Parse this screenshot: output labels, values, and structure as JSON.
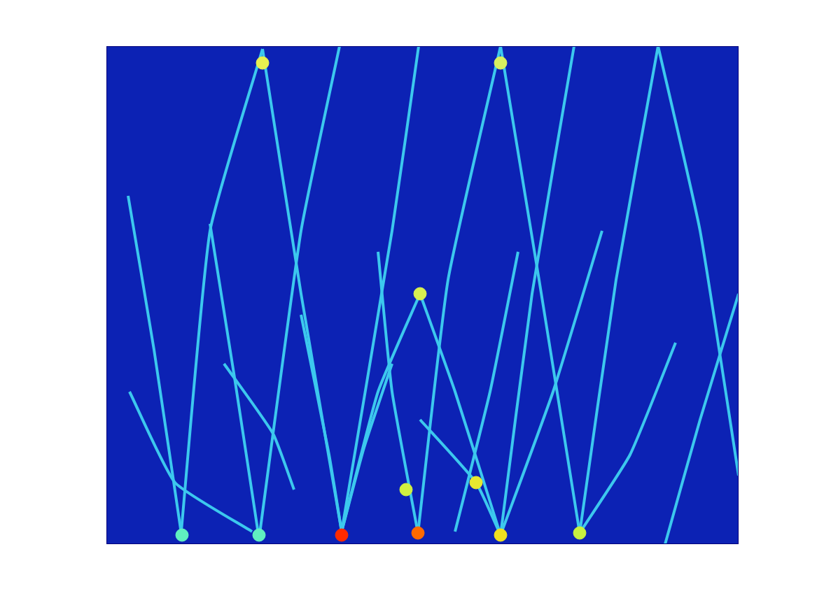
{
  "chart_data": {
    "type": "line",
    "xlim": [
      0,
      903
    ],
    "ylim": [
      0,
      712
    ],
    "tick_labels": false,
    "grid": false,
    "series": [
      {
        "type": "line",
        "color": "#3cc8ee",
        "x": [
          223,
          278,
          336
        ],
        "values": [
          708,
          358,
          18
        ]
      },
      {
        "type": "line",
        "color": "#3cc8ee",
        "x": [
          223,
          148,
          106
        ],
        "values": [
          708,
          448,
          8
        ]
      },
      {
        "type": "line",
        "color": "#3cc8ee",
        "x": [
          333,
          278,
          218
        ],
        "values": [
          712,
          448,
          8
        ]
      },
      {
        "type": "line",
        "color": "#3cc8ee",
        "x": [
          446,
          408,
          336
        ],
        "values": [
          712,
          448,
          18
        ]
      },
      {
        "type": "line",
        "color": "#3cc8ee",
        "x": [
          563,
          488,
          445
        ],
        "values": [
          712,
          378,
          16
        ]
      },
      {
        "type": "line",
        "color": "#3cc8ee",
        "x": [
          563,
          618,
          676
        ],
        "values": [
          712,
          378,
          16
        ]
      },
      {
        "type": "line",
        "color": "#3cc8ee",
        "x": [
          668,
          608,
          563
        ],
        "values": [
          712,
          358,
          13
        ]
      },
      {
        "type": "line",
        "color": "#3cc8ee",
        "x": [
          788,
          728,
          676
        ],
        "values": [
          712,
          378,
          16
        ]
      },
      {
        "type": "line",
        "color": "#3cc8ee",
        "x": [
          788,
          848,
          903
        ],
        "values": [
          712,
          448,
          98
        ]
      },
      {
        "type": "line",
        "color": "#3cc8ee",
        "x": [
          31,
          68,
          108
        ],
        "values": [
          498,
          278,
          8
        ]
      },
      {
        "type": "line",
        "color": "#3cc8ee",
        "x": [
          148,
          183,
          218
        ],
        "values": [
          458,
          238,
          8
        ]
      },
      {
        "type": "line",
        "color": "#3cc8ee",
        "x": [
          448,
          388,
          336
        ],
        "values": [
          358,
          218,
          18
        ]
      },
      {
        "type": "line",
        "color": "#3cc8ee",
        "x": [
          448,
          498,
          563
        ],
        "values": [
          358,
          218,
          13
        ]
      },
      {
        "type": "line",
        "color": "#3cc8ee",
        "x": [
          388,
          408,
          445
        ],
        "values": [
          418,
          218,
          16
        ]
      },
      {
        "type": "line",
        "color": "#3cc8ee",
        "x": [
          708,
          638,
          563
        ],
        "values": [
          448,
          218,
          13
        ]
      },
      {
        "type": "line",
        "color": "#3cc8ee",
        "x": [
          903,
          848,
          798
        ],
        "values": [
          358,
          178,
          0
        ]
      },
      {
        "type": "line",
        "color": "#3cc8ee",
        "x": [
          813,
          748,
          676
        ],
        "values": [
          288,
          128,
          16
        ]
      },
      {
        "type": "line",
        "color": "#3cc8ee",
        "x": [
          33,
          98,
          208
        ],
        "values": [
          218,
          88,
          18
        ]
      },
      {
        "type": "line",
        "color": "#3cc8ee",
        "x": [
          278,
          318,
          336
        ],
        "values": [
          328,
          128,
          18
        ]
      },
      {
        "type": "line",
        "color": "#3cc8ee",
        "x": [
          448,
          528,
          563
        ],
        "values": [
          178,
          88,
          13
        ]
      },
      {
        "type": "line",
        "color": "#3cc8ee",
        "x": [
          408,
          368,
          336
        ],
        "values": [
          258,
          138,
          18
        ]
      },
      {
        "type": "line",
        "color": "#3cc8ee",
        "x": [
          588,
          548,
          498
        ],
        "values": [
          418,
          218,
          18
        ]
      },
      {
        "type": "line",
        "color": "#3cc8ee",
        "x": [
          168,
          238,
          268
        ],
        "values": [
          258,
          158,
          78
        ]
      },
      {
        "type": "scatter",
        "colors": [
          "#ff2a00",
          "#ff6a00",
          "#f0e020",
          "#c8f040",
          "#e8e830",
          "#d0f040",
          "#60f0c0",
          "#60f0c0",
          "#d8f050",
          "#e8f050",
          "#d8f060"
        ],
        "x": [
          336,
          445,
          563,
          676,
          528,
          428,
          108,
          218,
          448,
          223,
          563
        ],
        "values": [
          13,
          16,
          13,
          16,
          88,
          78,
          13,
          13,
          358,
          688,
          688
        ]
      }
    ]
  }
}
